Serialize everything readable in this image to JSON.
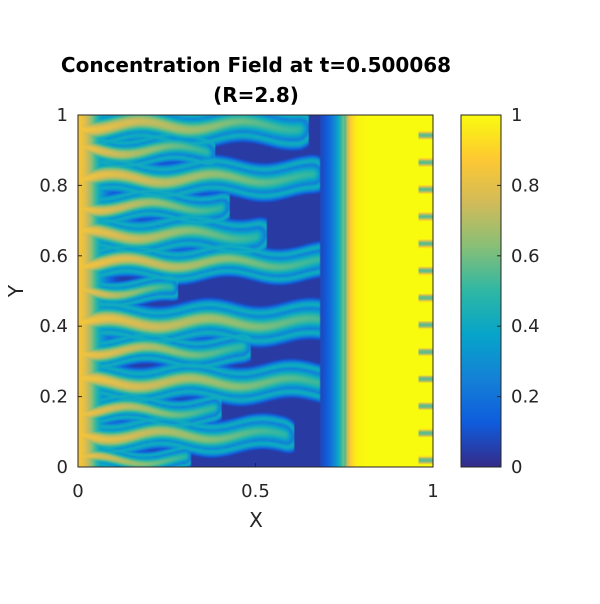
{
  "chart_data": {
    "type": "heatmap",
    "title": "Concentration Field at t=0.500068",
    "subtitle": "(R=2.8)",
    "xlabel": "X",
    "ylabel": "Y",
    "xlim": [
      0,
      1
    ],
    "ylim": [
      0,
      1
    ],
    "x_ticks": [
      "0",
      "0.5",
      "1"
    ],
    "y_ticks": [
      "0",
      "0.2",
      "0.4",
      "0.6",
      "0.8",
      "1"
    ],
    "colorbar": {
      "range": [
        0,
        1
      ],
      "ticks": [
        "0",
        "0.2",
        "0.4",
        "0.6",
        "0.8",
        "1"
      ],
      "colormap": "parula",
      "colors": [
        "#352a87",
        "#0f5cdd",
        "#1481d6",
        "#06a4ca",
        "#2eb7a4",
        "#87bf77",
        "#d1bb59",
        "#fec832",
        "#f9fb0e"
      ]
    },
    "field": {
      "front_x": 0.75,
      "inner_edge_x": 0.68,
      "left_plateau": 0.85,
      "right_plateau": 1.0,
      "fingers": [
        {
          "y": 0.97,
          "len": 0.62,
          "w": 0.032
        },
        {
          "y": 0.9,
          "len": 0.36,
          "w": 0.026
        },
        {
          "y": 0.82,
          "len": 0.66,
          "w": 0.03
        },
        {
          "y": 0.74,
          "len": 0.4,
          "w": 0.026
        },
        {
          "y": 0.66,
          "len": 0.5,
          "w": 0.03
        },
        {
          "y": 0.58,
          "len": 0.7,
          "w": 0.028
        },
        {
          "y": 0.5,
          "len": 0.26,
          "w": 0.022
        },
        {
          "y": 0.41,
          "len": 0.76,
          "w": 0.032
        },
        {
          "y": 0.33,
          "len": 0.46,
          "w": 0.026
        },
        {
          "y": 0.24,
          "len": 0.72,
          "w": 0.03
        },
        {
          "y": 0.16,
          "len": 0.38,
          "w": 0.024
        },
        {
          "y": 0.09,
          "len": 0.58,
          "w": 0.028
        },
        {
          "y": 0.02,
          "len": 0.3,
          "w": 0.02
        }
      ]
    }
  }
}
